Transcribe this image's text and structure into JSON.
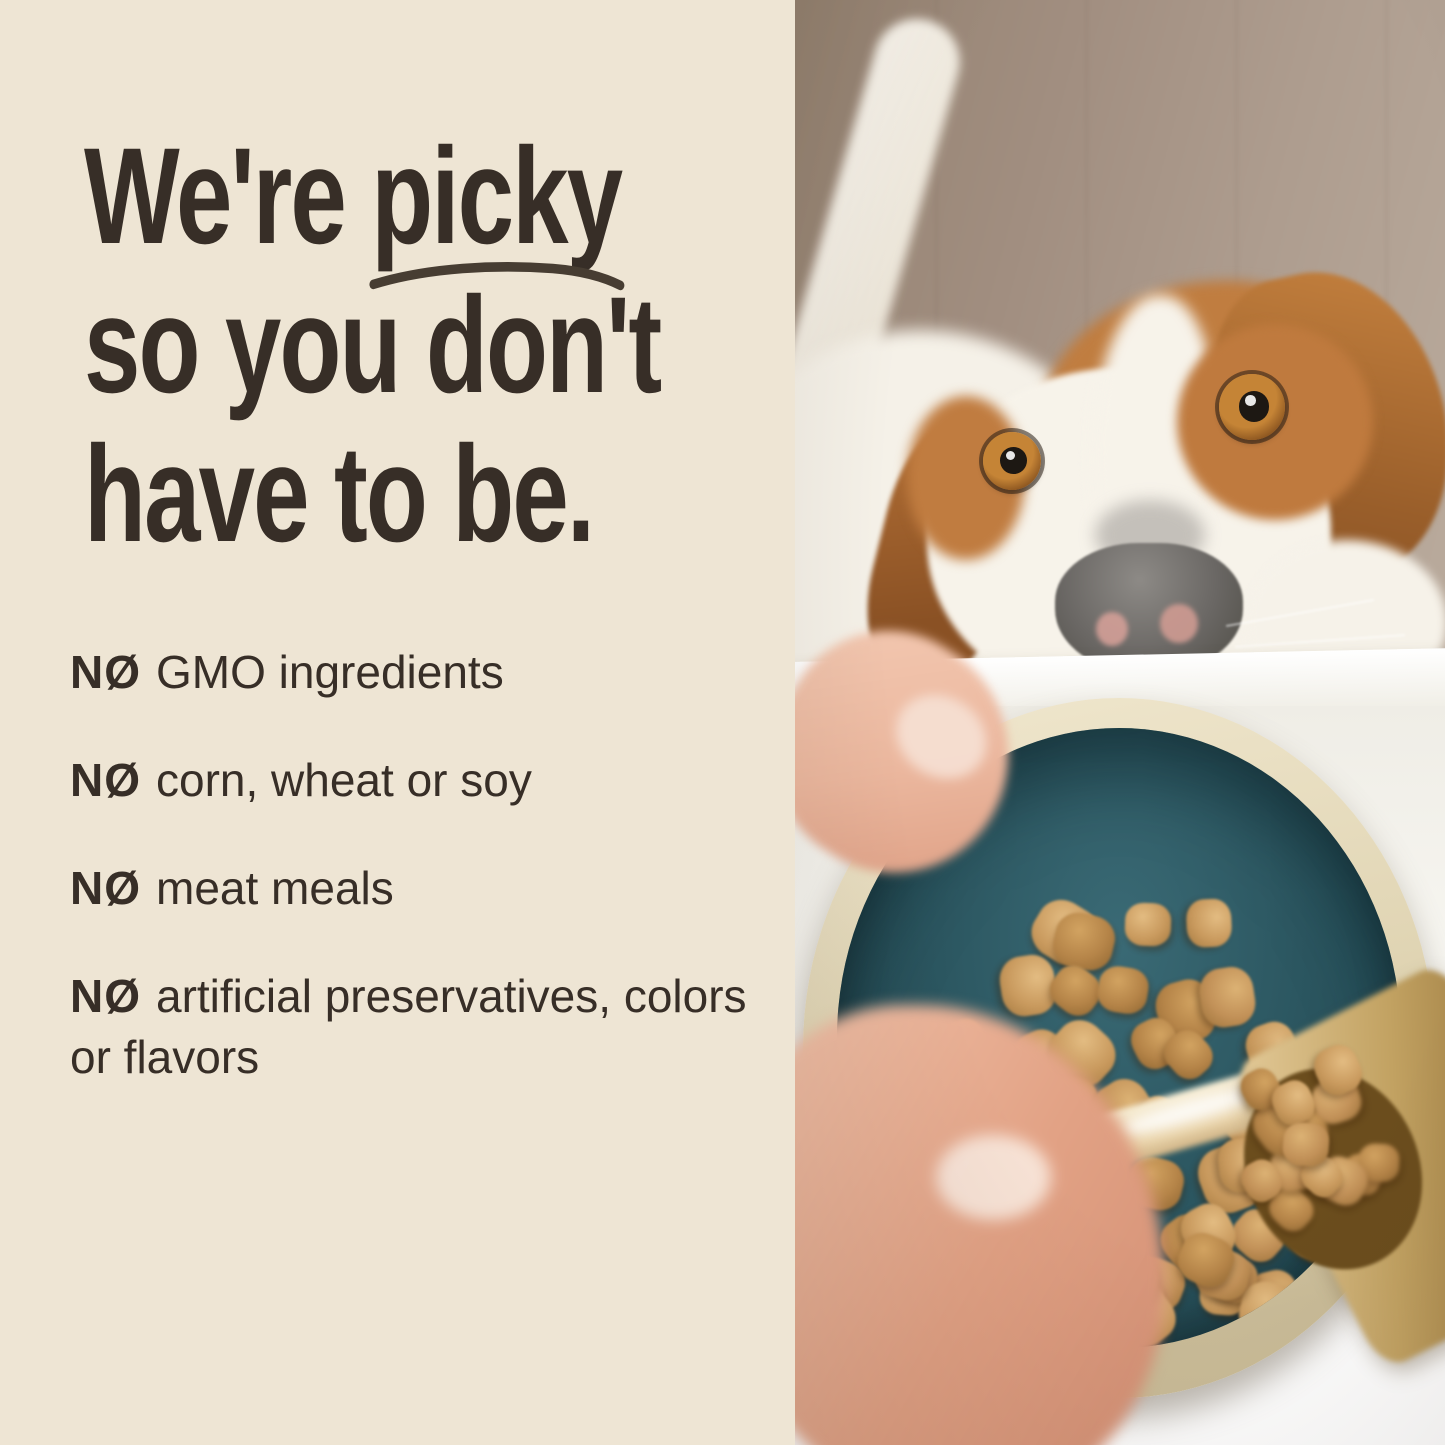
{
  "colors": {
    "bg": "#EEE5D4",
    "ink": "#372E27",
    "wood": "#AB998B",
    "table-white": "#FAF9F4",
    "dog-white": "#F7F3EA",
    "dog-tan": "#C07B3E",
    "nose-grey": "#6B6865",
    "bowl-rim": "#E9DFC5",
    "bowl-teal": "#2C5761",
    "kibble": "#C3945A",
    "skin": "#EBB79E",
    "brass": "#C2A262",
    "handle": "#E9D3A9"
  },
  "headline": {
    "line1_prefix": "We're ",
    "line1_underlined": "picky",
    "line2": "so you don't",
    "line3": "have to be."
  },
  "no_claims": [
    {
      "prefix": "NØ",
      "label": "GMO ingredients"
    },
    {
      "prefix": "NØ",
      "label": "corn, wheat or soy"
    },
    {
      "prefix": "NØ",
      "label": "meat meals"
    },
    {
      "prefix": "NØ",
      "label": "artificial preservatives, colors or flavors"
    }
  ],
  "photo": {
    "alt": "Brown and white dog peeking over a white table edge at a teal bowl of kibble while a hand holds the bowl and pours kibble from a brass scoop"
  }
}
